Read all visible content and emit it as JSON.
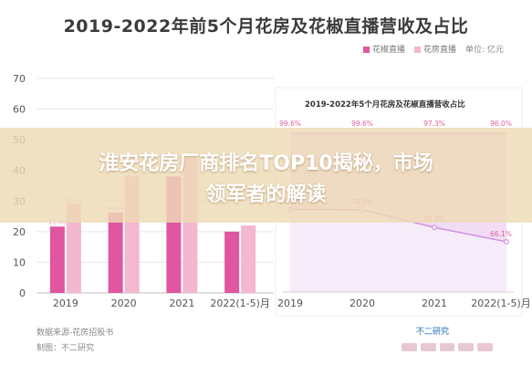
{
  "header": {
    "title": "2019-2022年前5个月花房及花椒直播营收及占比"
  },
  "legend": {
    "items": [
      {
        "label": "花椒直播",
        "color": "#e0569f"
      },
      {
        "label": "花房直播",
        "color": "#f3b7cf"
      }
    ],
    "unit": "单位: 亿元"
  },
  "inner": {
    "title": "2019-2022年5个月花房及花椒直播营收占比"
  },
  "headline": {
    "line1": "淮安花房厂商排名TOP10揭秘，市场",
    "line2": "领军者的解读"
  },
  "footer": {
    "source": "数据来源-花房招股书",
    "maker": "制图：不二研究"
  },
  "watermark": {
    "logo": "不二研究"
  },
  "colors": {
    "huajiao": "#e0569f",
    "huafang": "#f3b7cf",
    "area": "#ecd0f0",
    "line": "#cf8fe0"
  },
  "chart_data": [
    {
      "type": "bar",
      "title": "2019-2022年前5个月花房及花椒直播营收及占比",
      "categories": [
        "2019",
        "2020",
        "2021",
        "2022(1-5)月"
      ],
      "series": [
        {
          "name": "花椒直播",
          "values": [
            21.66,
            26.26,
            38.0,
            20.0
          ],
          "labels": [
            "21.66",
            "26.26",
            "",
            ""
          ]
        },
        {
          "name": "花房直播",
          "values": [
            29.33,
            38.26,
            44.0,
            22.0
          ],
          "labels": [
            "29.33",
            "38.26",
            "",
            ""
          ]
        }
      ],
      "yticks": [
        "0",
        "10",
        "20",
        "30",
        "40",
        "50",
        "60",
        "70"
      ],
      "ylim": [
        0,
        70
      ],
      "legend": "top-right"
    },
    {
      "type": "area",
      "title": "2019-2022年5个月花房及花椒直播营收占比",
      "categories": [
        "2019",
        "2020",
        "2021",
        "2022(1-5)月"
      ],
      "series": [
        {
          "name": "top",
          "values": [
            99.6,
            99.6,
            97.3,
            96.0
          ],
          "labels": [
            "99.6%",
            "99.6%",
            "97.3%",
            "96.0%"
          ]
        },
        {
          "name": "bottom",
          "values": [
            76.5,
            76.3,
            70.7,
            66.1
          ],
          "labels": [
            "76.5%",
            "76.3%",
            "70.7%",
            "66.1%"
          ]
        }
      ]
    }
  ]
}
